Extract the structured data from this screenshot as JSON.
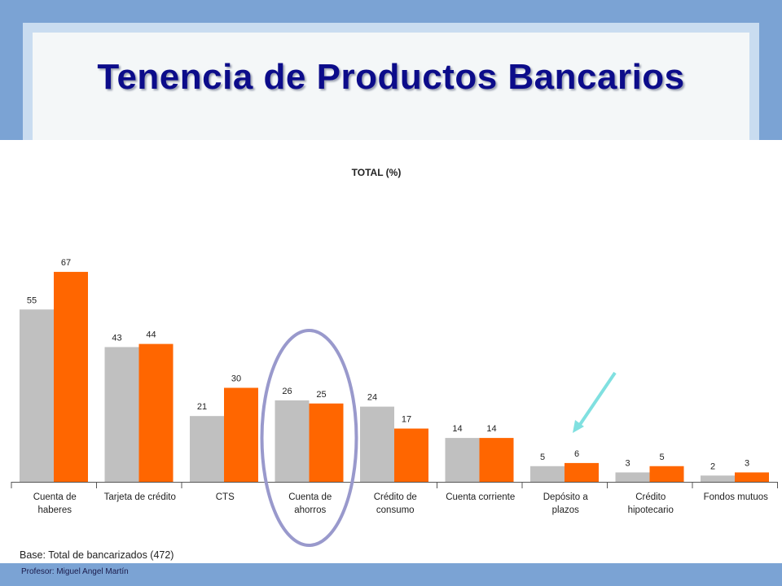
{
  "slide": {
    "title": "Tenencia de Productos Bancarios",
    "footer": "Profesor: Miguel Angel Martín"
  },
  "colors": {
    "series_a": "#c0c0c0",
    "series_b": "#ff6600",
    "highlight_ellipse": "#9999cc",
    "arrow": "#80e0e0",
    "title": "#0c0c8a",
    "frame": "#7ba3d4"
  },
  "chart_data": {
    "type": "bar",
    "title": "TOTAL (%)",
    "xlabel": "",
    "ylabel": "",
    "ylim": [
      0,
      80
    ],
    "grid": false,
    "legend": "none",
    "categories": [
      [
        "Cuenta de",
        "haberes"
      ],
      [
        "Tarjeta de crédito"
      ],
      [
        "CTS"
      ],
      [
        "Cuenta de",
        "ahorros"
      ],
      [
        "Crédito de",
        "consumo"
      ],
      [
        "Cuenta corriente"
      ],
      [
        "Depósito a",
        "plazos"
      ],
      [
        "Crédito",
        "hipotecario"
      ],
      [
        "Fondos mutuos"
      ]
    ],
    "series": [
      {
        "values": [
          55,
          43,
          21,
          26,
          24,
          14,
          5,
          3,
          2
        ]
      },
      {
        "values": [
          67,
          44,
          30,
          25,
          17,
          14,
          6,
          5,
          3
        ]
      }
    ],
    "annotations": {
      "highlighted_category_index": 3,
      "arrow_target_category_index": 6
    },
    "base_note": "Base: Total de bancarizados (472)"
  }
}
